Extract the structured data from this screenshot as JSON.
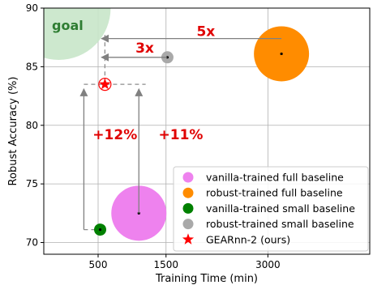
{
  "chart_data": {
    "type": "scatter",
    "xlabel": "Training Time (min)",
    "ylabel": "Robust Accuracy (%)",
    "xlim": [
      -300,
      4500
    ],
    "ylim": [
      69,
      90
    ],
    "x_ticks": [
      500,
      1500,
      3000
    ],
    "y_ticks": [
      70,
      75,
      80,
      85,
      90
    ],
    "grid": true,
    "legend_position": "lower-right",
    "series": [
      {
        "name": "vanilla-trained full baseline",
        "color": "#ee82ee",
        "x": [
          1100
        ],
        "y": [
          72.5
        ]
      },
      {
        "name": "robust-trained full baseline",
        "color": "#ff8c00",
        "x": [
          3200
        ],
        "y": [
          86.1
        ]
      },
      {
        "name": "vanilla-trained small baseline",
        "color": "#008000",
        "x": [
          530
        ],
        "y": [
          71.1
        ]
      },
      {
        "name": "robust-trained small baseline",
        "color": "#a9a9a9",
        "x": [
          1520
        ],
        "y": [
          85.8
        ]
      },
      {
        "name": "GEARnn-2 (ours)",
        "color": "#ff0000",
        "x": [
          600
        ],
        "y": [
          83.5
        ]
      }
    ],
    "goal": {
      "label": "goal",
      "x": -80,
      "y": 90,
      "color": "#c8e6c9",
      "text_color": "#2e7d32"
    },
    "annotations": [
      {
        "text": "5x",
        "x": 1950,
        "y": 87.6,
        "color": "#e00000"
      },
      {
        "text": "3x",
        "x": 1050,
        "y": 86.2,
        "color": "#e00000"
      },
      {
        "text": "+12%",
        "x": 420,
        "y": 78.8,
        "color": "#e00000"
      },
      {
        "text": "+11%",
        "x": 1390,
        "y": 78.8,
        "color": "#e00000"
      }
    ]
  }
}
